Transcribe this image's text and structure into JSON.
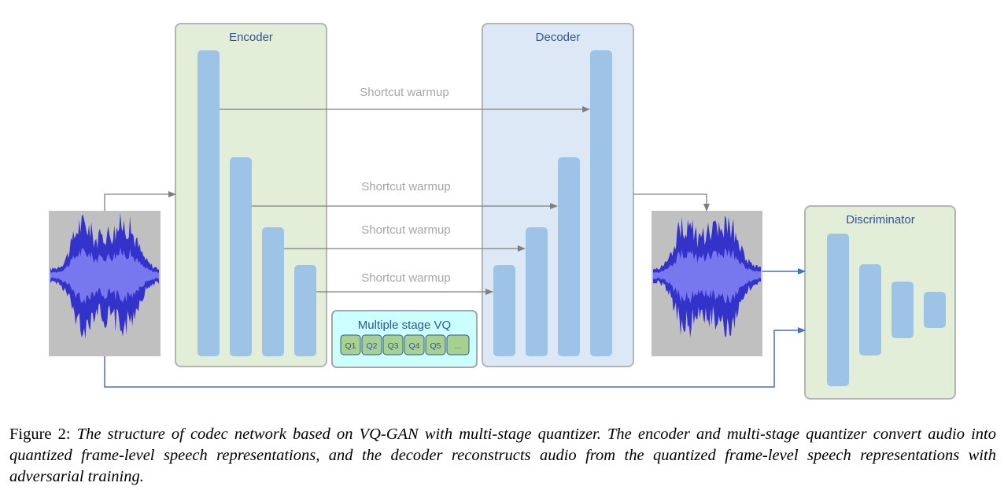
{
  "figure": {
    "encoder_label": "Encoder",
    "decoder_label": "Decoder",
    "discriminator_label": "Discriminator",
    "vq_title": "Multiple stage VQ",
    "vq_cells": [
      "Q1",
      "Q2",
      "Q3",
      "Q4",
      "Q5",
      "..."
    ],
    "shortcut_labels": [
      "Shortcut warmup",
      "Shortcut warmup",
      "Shortcut warmup",
      "Shortcut warmup"
    ],
    "colors": {
      "encoder_fill": "#e2eed8",
      "decoder_fill": "#dce8f5",
      "block_fill": "#9dc3e6",
      "vq_fill": "#ccffff",
      "vq_cell_fill": "#a9d18e",
      "label_blue": "#2f5597",
      "shortcut_gray": "#a6a6a6",
      "arrow_gray": "#7f7f7f",
      "arrow_blue": "#4472c4",
      "waveform_bg": "#c0c0c0",
      "waveform_dark": "#3333cc",
      "waveform_light": "#7777ee"
    }
  },
  "caption": {
    "lead": "Figure 2:",
    "text": "The structure of codec network based on VQ-GAN with multi-stage quantizer. The encoder and multi-stage quantizer convert audio into quantized frame-level speech representations, and the decoder reconstructs audio from the quantized frame-level speech representations with adversarial training."
  }
}
